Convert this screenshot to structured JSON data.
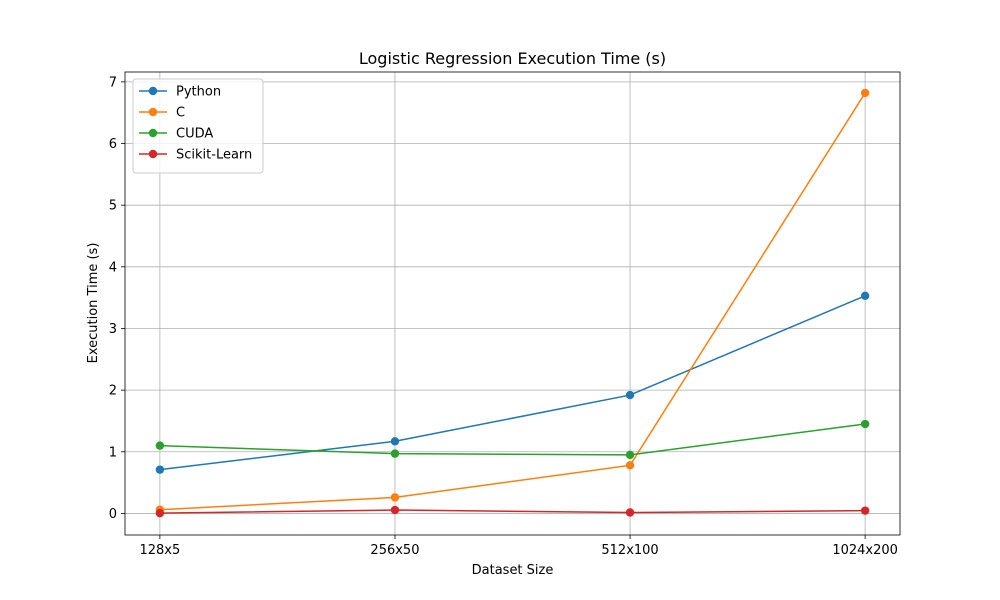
{
  "chart_data": {
    "type": "line",
    "title": "Logistic Regression Execution Time (s)",
    "xlabel": "Dataset Size",
    "ylabel": "Execution Time (s)",
    "categories": [
      "128x5",
      "256x50",
      "512x100",
      "1024x200"
    ],
    "yticks": [
      0,
      1,
      2,
      3,
      4,
      5,
      6,
      7
    ],
    "ylim": [
      -0.35,
      7.16
    ],
    "grid": true,
    "legend_position": "top-left",
    "series": [
      {
        "name": "Python",
        "color": "#1f77b4",
        "values": [
          0.71,
          1.17,
          1.92,
          3.53
        ]
      },
      {
        "name": "C",
        "color": "#ff7f0e",
        "values": [
          0.06,
          0.26,
          0.78,
          6.82
        ]
      },
      {
        "name": "CUDA",
        "color": "#2ca02c",
        "values": [
          1.1,
          0.97,
          0.95,
          1.45
        ]
      },
      {
        "name": "Scikit-Learn",
        "color": "#d62728",
        "values": [
          0.005,
          0.055,
          0.015,
          0.045
        ]
      }
    ]
  }
}
